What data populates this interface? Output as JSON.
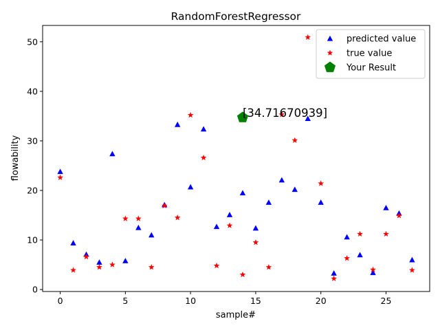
{
  "chart_data": {
    "type": "scatter",
    "title": "RandomForestRegressor",
    "xlabel": "sample#",
    "ylabel": "flowability",
    "xlim": [
      -1.35,
      28.35
    ],
    "ylim": [
      -0.4,
      53.3
    ],
    "xticks": [
      0,
      5,
      10,
      15,
      20,
      25
    ],
    "yticks": [
      0,
      10,
      20,
      30,
      40,
      50
    ],
    "grid": false,
    "legend_position": "upper right",
    "series": [
      {
        "name": "predicted value",
        "marker": "triangle",
        "color": "#0000ff",
        "x": [
          0,
          1,
          2,
          3,
          4,
          5,
          6,
          7,
          8,
          9,
          10,
          11,
          12,
          13,
          14,
          15,
          16,
          17,
          18,
          19,
          20,
          21,
          22,
          23,
          24,
          25,
          26,
          27
        ],
        "y": [
          23.8,
          9.4,
          7.1,
          5.5,
          27.4,
          5.8,
          12.5,
          11.0,
          17.1,
          33.3,
          20.7,
          32.4,
          12.7,
          15.1,
          19.5,
          12.4,
          17.6,
          22.1,
          20.2,
          34.5,
          17.6,
          3.3,
          10.6,
          7.0,
          3.4,
          16.5,
          15.4,
          6.0
        ]
      },
      {
        "name": "true value",
        "marker": "star",
        "color": "#ff0000",
        "x": [
          0,
          1,
          2,
          3,
          4,
          5,
          6,
          7,
          8,
          9,
          10,
          11,
          12,
          13,
          14,
          15,
          16,
          17,
          18,
          19,
          20,
          21,
          22,
          23,
          24,
          25,
          26,
          27
        ],
        "y": [
          22.6,
          3.9,
          6.6,
          4.5,
          5.0,
          14.3,
          14.3,
          4.5,
          16.9,
          14.5,
          35.2,
          26.6,
          4.8,
          12.9,
          3.0,
          9.5,
          4.5,
          35.3,
          30.1,
          50.9,
          21.4,
          2.2,
          6.3,
          11.2,
          4.0,
          11.2,
          14.9,
          3.9
        ]
      },
      {
        "name": "Your Result",
        "marker": "pentagon",
        "color": "#008000",
        "x": [
          14
        ],
        "y": [
          34.71670939
        ]
      }
    ],
    "annotations": [
      {
        "text": "[34.71670939]",
        "x": 14,
        "y": 34.71670939
      }
    ]
  }
}
